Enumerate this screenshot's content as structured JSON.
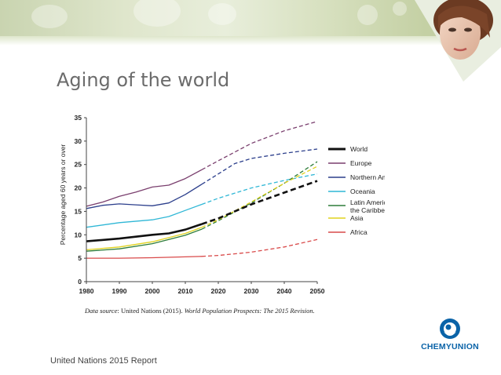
{
  "slide": {
    "title": "Aging of the world",
    "footer": "United Nations 2015 Report",
    "data_source_label": "Data source",
    "data_source_rest": ": United Nations (2015). ",
    "data_source_title": "World Population Prospects: The 2015 Revision.",
    "logo_text": "CHEMYUNION"
  },
  "colors": {
    "banner": "#d7e0bf",
    "title": "#6b6b6b",
    "logo": "#0a63a8"
  },
  "chart_data": {
    "type": "line",
    "title": "",
    "xlabel": "",
    "ylabel": "Percentage aged 60 years or over",
    "xlim": [
      1980,
      2050
    ],
    "ylim": [
      0,
      35
    ],
    "xticks": [
      1980,
      1990,
      2000,
      2010,
      2020,
      2030,
      2040,
      2050
    ],
    "yticks": [
      0,
      5,
      10,
      15,
      20,
      25,
      30,
      35
    ],
    "projection_start": 2015,
    "grid": false,
    "legend_position": "right",
    "series": [
      {
        "name": "World",
        "color": "#111111",
        "width": 2.6,
        "x": [
          1980,
          1990,
          2000,
          2005,
          2010,
          2015,
          2020,
          2030,
          2040,
          2050
        ],
        "values": [
          8.6,
          9.2,
          10.0,
          10.3,
          11.1,
          12.3,
          13.5,
          16.5,
          19.0,
          21.5
        ]
      },
      {
        "name": "Europe",
        "color": "#7a3f6e",
        "width": 1.3,
        "x": [
          1980,
          1985,
          1990,
          1995,
          2000,
          2005,
          2010,
          2015,
          2020,
          2030,
          2040,
          2050
        ],
        "values": [
          16.1,
          17.0,
          18.2,
          19.1,
          20.2,
          20.6,
          22.0,
          23.9,
          25.8,
          29.5,
          32.2,
          34.2
        ]
      },
      {
        "name": "Northern America",
        "color": "#2c3f8c",
        "width": 1.3,
        "x": [
          1980,
          1985,
          1990,
          1995,
          2000,
          2005,
          2010,
          2015,
          2020,
          2025,
          2030,
          2040,
          2050
        ],
        "values": [
          15.6,
          16.3,
          16.6,
          16.4,
          16.2,
          16.8,
          18.6,
          20.8,
          23.0,
          25.2,
          26.3,
          27.4,
          28.3
        ]
      },
      {
        "name": "Oceania",
        "color": "#2fb7d6",
        "width": 1.3,
        "x": [
          1980,
          1990,
          2000,
          2005,
          2010,
          2015,
          2020,
          2030,
          2040,
          2050
        ],
        "values": [
          11.6,
          12.6,
          13.2,
          13.9,
          15.2,
          16.5,
          17.8,
          20.0,
          21.6,
          23.0
        ]
      },
      {
        "name": "Latin America and the Caribbean",
        "color": "#2e7d3a",
        "width": 1.3,
        "x": [
          1980,
          1990,
          2000,
          2010,
          2015,
          2020,
          2030,
          2040,
          2050
        ],
        "values": [
          6.5,
          7.0,
          8.1,
          9.9,
          11.2,
          13.0,
          16.8,
          21.0,
          25.6
        ]
      },
      {
        "name": "Asia",
        "color": "#e0d21e",
        "width": 1.3,
        "x": [
          1980,
          1990,
          2000,
          2010,
          2015,
          2020,
          2030,
          2040,
          2050
        ],
        "values": [
          6.8,
          7.4,
          8.5,
          10.3,
          11.6,
          13.2,
          17.0,
          21.0,
          24.6
        ]
      },
      {
        "name": "Africa",
        "color": "#d94a4a",
        "width": 1.3,
        "x": [
          1980,
          1990,
          2000,
          2010,
          2015,
          2020,
          2030,
          2040,
          2050
        ],
        "values": [
          5.0,
          5.0,
          5.1,
          5.3,
          5.4,
          5.6,
          6.3,
          7.4,
          9.0
        ]
      }
    ]
  }
}
